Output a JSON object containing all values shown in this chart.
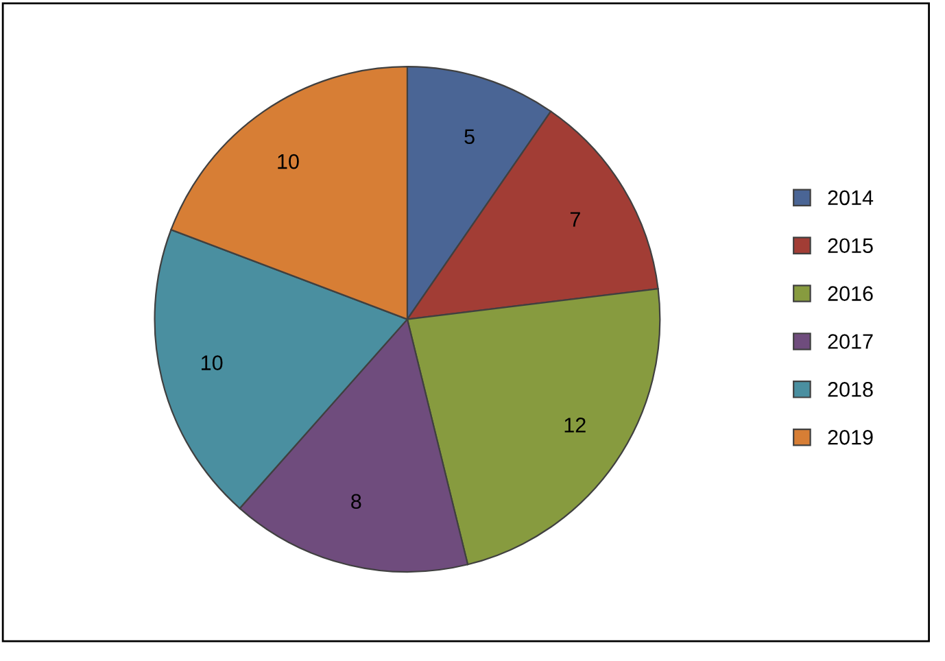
{
  "chart_data": {
    "type": "pie",
    "categories": [
      "2014",
      "2015",
      "2016",
      "2017",
      "2018",
      "2019"
    ],
    "values": [
      5,
      7,
      12,
      8,
      10,
      10
    ],
    "colors": [
      "#4a6595",
      "#a23d35",
      "#879b3f",
      "#6f4c7d",
      "#4a8fa0",
      "#d77e35"
    ],
    "data_labels": true,
    "legend": "right"
  }
}
